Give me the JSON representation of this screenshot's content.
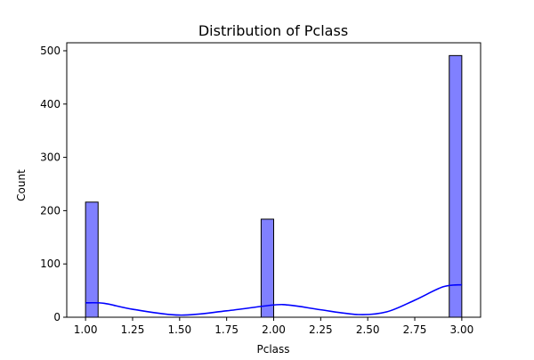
{
  "chart_data": {
    "type": "bar",
    "subtype": "histogram",
    "title": "Distribution of Pclass",
    "xlabel": "Pclass",
    "ylabel": "Count",
    "xlim": [
      0.9,
      3.1
    ],
    "ylim": [
      0,
      515
    ],
    "xticks": [
      1.0,
      1.25,
      1.5,
      1.75,
      2.0,
      2.25,
      2.5,
      2.75,
      3.0
    ],
    "xtick_labels": [
      "1.00",
      "1.25",
      "1.50",
      "1.75",
      "2.00",
      "2.25",
      "2.50",
      "2.75",
      "3.00"
    ],
    "yticks": [
      0,
      100,
      200,
      300,
      400,
      500
    ],
    "ytick_labels": [
      "0",
      "100",
      "200",
      "300",
      "400",
      "500"
    ],
    "bars": [
      {
        "x0": 1.0,
        "x1": 1.0667,
        "value": 216
      },
      {
        "x0": 1.9333,
        "x1": 2.0,
        "value": 184
      },
      {
        "x0": 2.9333,
        "x1": 3.0,
        "value": 491
      }
    ],
    "bar_fill": "#8080ff",
    "bar_edge": "#000000",
    "kde": {
      "color": "#0000ff",
      "x": [
        1.0,
        1.1,
        1.25,
        1.5,
        1.75,
        2.0,
        2.1,
        2.25,
        2.45,
        2.6,
        2.75,
        2.9,
        3.0
      ],
      "y": [
        27,
        26,
        15,
        4,
        12,
        23,
        22,
        14,
        5,
        10,
        32,
        57,
        61
      ]
    },
    "grid": false,
    "legend": "none"
  }
}
